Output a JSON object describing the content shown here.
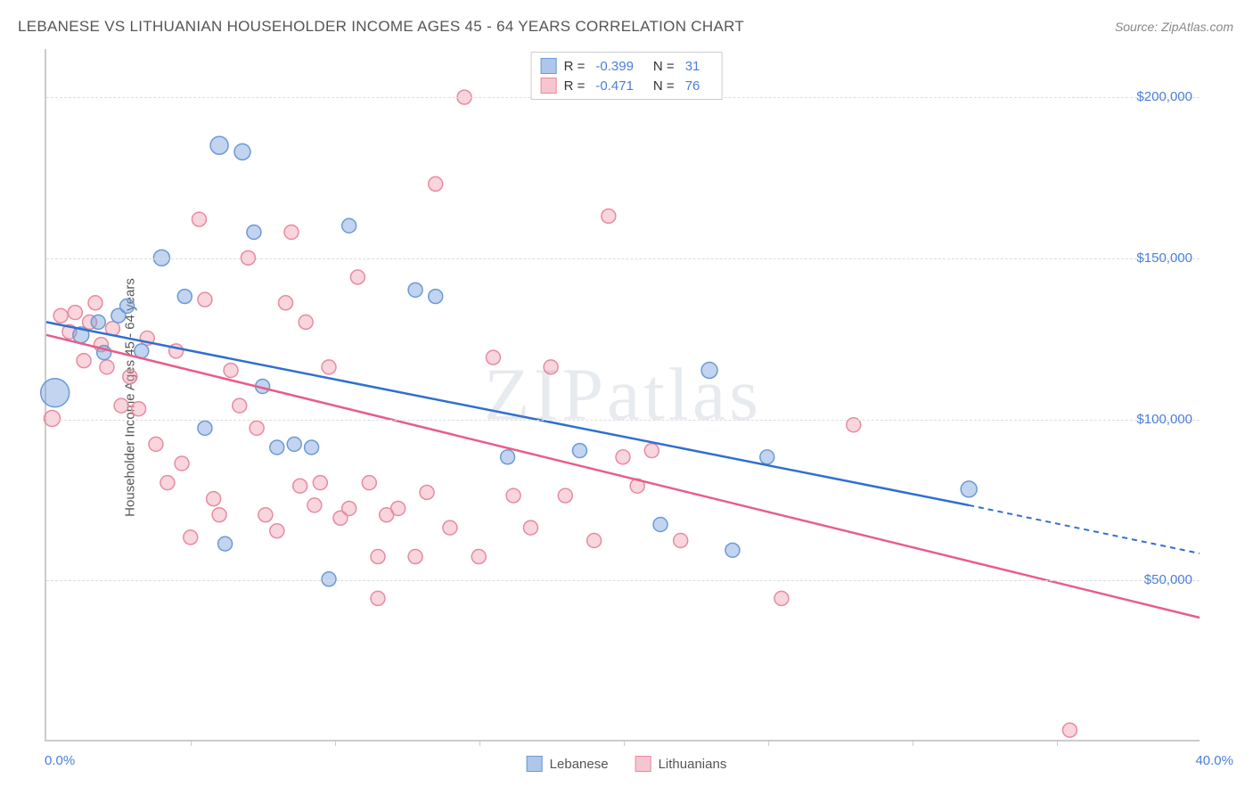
{
  "title": "LEBANESE VS LITHUANIAN HOUSEHOLDER INCOME AGES 45 - 64 YEARS CORRELATION CHART",
  "source": "Source: ZipAtlas.com",
  "ylabel": "Householder Income Ages 45 - 64 years",
  "watermark": "ZIPatlas",
  "xlim": [
    0,
    40
  ],
  "ylim": [
    0,
    215000
  ],
  "x_tick_step": 5,
  "y_grid_values": [
    50000,
    100000,
    150000,
    200000
  ],
  "y_grid_labels": [
    "$50,000",
    "$100,000",
    "$150,000",
    "$200,000"
  ],
  "x_axis_start_label": "0.0%",
  "x_axis_end_label": "40.0%",
  "colors": {
    "blue_fill": "rgba(120,160,220,0.45)",
    "blue_stroke": "#6a9ad6",
    "pink_fill": "rgba(240,150,170,0.4)",
    "pink_stroke": "#e88aa0",
    "blue_line": "#2f6fd0",
    "pink_line": "#e85d87",
    "axis_label": "#4a7fd8",
    "grid": "#dddddd"
  },
  "legend_top": [
    {
      "swatch_fill": "rgba(120,160,220,0.6)",
      "swatch_border": "#6a9ad6",
      "R": "-0.399",
      "N": "31"
    },
    {
      "swatch_fill": "rgba(240,150,170,0.55)",
      "swatch_border": "#e88aa0",
      "R": "-0.471",
      "N": "76"
    }
  ],
  "legend_bottom": [
    {
      "swatch_fill": "rgba(120,160,220,0.6)",
      "swatch_border": "#6a9ad6",
      "label": "Lebanese"
    },
    {
      "swatch_fill": "rgba(240,150,170,0.55)",
      "swatch_border": "#e88aa0",
      "label": "Lithuanians"
    }
  ],
  "trend_lines": {
    "blue": {
      "x1": 0,
      "y1": 130000,
      "x2": 32,
      "y2": 73000,
      "dash_x2": 40,
      "dash_y2": 58000
    },
    "pink": {
      "x1": 0,
      "y1": 126000,
      "x2": 40,
      "y2": 38000
    }
  },
  "scatter_blue": [
    {
      "x": 0.3,
      "y": 108000,
      "r": 16
    },
    {
      "x": 1.2,
      "y": 126000,
      "r": 9
    },
    {
      "x": 1.8,
      "y": 130000,
      "r": 8
    },
    {
      "x": 2.0,
      "y": 120500,
      "r": 8
    },
    {
      "x": 2.5,
      "y": 132000,
      "r": 8
    },
    {
      "x": 3.3,
      "y": 121000,
      "r": 8
    },
    {
      "x": 2.8,
      "y": 135000,
      "r": 8
    },
    {
      "x": 4.0,
      "y": 150000,
      "r": 9
    },
    {
      "x": 4.8,
      "y": 138000,
      "r": 8
    },
    {
      "x": 6.0,
      "y": 185000,
      "r": 10
    },
    {
      "x": 6.8,
      "y": 183000,
      "r": 9
    },
    {
      "x": 7.2,
      "y": 158000,
      "r": 8
    },
    {
      "x": 5.5,
      "y": 97000,
      "r": 8
    },
    {
      "x": 6.2,
      "y": 61000,
      "r": 8
    },
    {
      "x": 7.5,
      "y": 110000,
      "r": 8
    },
    {
      "x": 8.0,
      "y": 91000,
      "r": 8
    },
    {
      "x": 8.6,
      "y": 92000,
      "r": 8
    },
    {
      "x": 9.2,
      "y": 91000,
      "r": 8
    },
    {
      "x": 9.8,
      "y": 50000,
      "r": 8
    },
    {
      "x": 10.5,
      "y": 160000,
      "r": 8
    },
    {
      "x": 12.8,
      "y": 140000,
      "r": 8
    },
    {
      "x": 13.5,
      "y": 138000,
      "r": 8
    },
    {
      "x": 16.0,
      "y": 88000,
      "r": 8
    },
    {
      "x": 18.5,
      "y": 90000,
      "r": 8
    },
    {
      "x": 21.3,
      "y": 67000,
      "r": 8
    },
    {
      "x": 23.0,
      "y": 115000,
      "r": 9
    },
    {
      "x": 23.8,
      "y": 59000,
      "r": 8
    },
    {
      "x": 25.0,
      "y": 88000,
      "r": 8
    },
    {
      "x": 32.0,
      "y": 78000,
      "r": 9
    }
  ],
  "scatter_pink": [
    {
      "x": 0.2,
      "y": 100000,
      "r": 9
    },
    {
      "x": 0.5,
      "y": 132000,
      "r": 8
    },
    {
      "x": 0.8,
      "y": 127000,
      "r": 8
    },
    {
      "x": 1.0,
      "y": 133000,
      "r": 8
    },
    {
      "x": 1.3,
      "y": 118000,
      "r": 8
    },
    {
      "x": 1.5,
      "y": 130000,
      "r": 8
    },
    {
      "x": 1.7,
      "y": 136000,
      "r": 8
    },
    {
      "x": 1.9,
      "y": 123000,
      "r": 8
    },
    {
      "x": 2.1,
      "y": 116000,
      "r": 8
    },
    {
      "x": 2.3,
      "y": 128000,
      "r": 8
    },
    {
      "x": 2.6,
      "y": 104000,
      "r": 8
    },
    {
      "x": 2.9,
      "y": 113000,
      "r": 8
    },
    {
      "x": 3.2,
      "y": 103000,
      "r": 8
    },
    {
      "x": 3.5,
      "y": 125000,
      "r": 8
    },
    {
      "x": 3.8,
      "y": 92000,
      "r": 8
    },
    {
      "x": 4.2,
      "y": 80000,
      "r": 8
    },
    {
      "x": 4.5,
      "y": 121000,
      "r": 8
    },
    {
      "x": 4.7,
      "y": 86000,
      "r": 8
    },
    {
      "x": 5.0,
      "y": 63000,
      "r": 8
    },
    {
      "x": 5.3,
      "y": 162000,
      "r": 8
    },
    {
      "x": 5.5,
      "y": 137000,
      "r": 8
    },
    {
      "x": 5.8,
      "y": 75000,
      "r": 8
    },
    {
      "x": 6.0,
      "y": 70000,
      "r": 8
    },
    {
      "x": 6.4,
      "y": 115000,
      "r": 8
    },
    {
      "x": 6.7,
      "y": 104000,
      "r": 8
    },
    {
      "x": 7.0,
      "y": 150000,
      "r": 8
    },
    {
      "x": 7.3,
      "y": 97000,
      "r": 8
    },
    {
      "x": 7.6,
      "y": 70000,
      "r": 8
    },
    {
      "x": 8.0,
      "y": 65000,
      "r": 8
    },
    {
      "x": 8.3,
      "y": 136000,
      "r": 8
    },
    {
      "x": 8.5,
      "y": 158000,
      "r": 8
    },
    {
      "x": 8.8,
      "y": 79000,
      "r": 8
    },
    {
      "x": 9.0,
      "y": 130000,
      "r": 8
    },
    {
      "x": 9.3,
      "y": 73000,
      "r": 8
    },
    {
      "x": 9.5,
      "y": 80000,
      "r": 8
    },
    {
      "x": 9.8,
      "y": 116000,
      "r": 8
    },
    {
      "x": 10.2,
      "y": 69000,
      "r": 8
    },
    {
      "x": 10.5,
      "y": 72000,
      "r": 8
    },
    {
      "x": 10.8,
      "y": 144000,
      "r": 8
    },
    {
      "x": 11.2,
      "y": 80000,
      "r": 8
    },
    {
      "x": 11.5,
      "y": 57000,
      "r": 8
    },
    {
      "x": 11.8,
      "y": 70000,
      "r": 8
    },
    {
      "x": 11.5,
      "y": 44000,
      "r": 8
    },
    {
      "x": 12.2,
      "y": 72000,
      "r": 8
    },
    {
      "x": 12.8,
      "y": 57000,
      "r": 8
    },
    {
      "x": 13.2,
      "y": 77000,
      "r": 8
    },
    {
      "x": 13.5,
      "y": 173000,
      "r": 8
    },
    {
      "x": 14.0,
      "y": 66000,
      "r": 8
    },
    {
      "x": 14.5,
      "y": 200000,
      "r": 8
    },
    {
      "x": 15.0,
      "y": 57000,
      "r": 8
    },
    {
      "x": 15.5,
      "y": 119000,
      "r": 8
    },
    {
      "x": 16.2,
      "y": 76000,
      "r": 8
    },
    {
      "x": 16.8,
      "y": 66000,
      "r": 8
    },
    {
      "x": 17.5,
      "y": 116000,
      "r": 8
    },
    {
      "x": 18.0,
      "y": 76000,
      "r": 8
    },
    {
      "x": 19.0,
      "y": 62000,
      "r": 8
    },
    {
      "x": 19.5,
      "y": 163000,
      "r": 8
    },
    {
      "x": 20.0,
      "y": 88000,
      "r": 8
    },
    {
      "x": 20.5,
      "y": 79000,
      "r": 8
    },
    {
      "x": 21.0,
      "y": 90000,
      "r": 8
    },
    {
      "x": 22.0,
      "y": 62000,
      "r": 8
    },
    {
      "x": 25.5,
      "y": 44000,
      "r": 8
    },
    {
      "x": 28.0,
      "y": 98000,
      "r": 8
    },
    {
      "x": 35.5,
      "y": 3000,
      "r": 8
    }
  ]
}
